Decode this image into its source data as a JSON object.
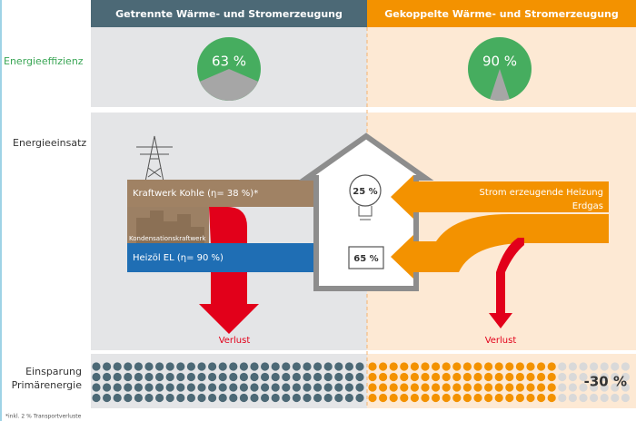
{
  "header": {
    "left": "Getrennte Wärme- und Stromerzeugung",
    "right": "Gekoppelte Wärme- und Stromerzeugung"
  },
  "rows": {
    "efficiency": "Energieeffizienz",
    "input": "Energieeinsatz",
    "savings_line1": "Einsparung",
    "savings_line2": "Primärenergie"
  },
  "efficiency": [
    {
      "value": 63,
      "label": "63 %"
    },
    {
      "value": 90,
      "label": "90 %"
    }
  ],
  "flows": {
    "coal": "Kraftwerk Kohle (η= 38 %)*",
    "coal_plant": "Kondensationskraftwerk",
    "oil": "Heizöl EL (η= 90 %)",
    "chp_line1": "Strom erzeugende Heizung",
    "chp_line2": "Erdgas",
    "loss_left": "Verlust",
    "loss_right": "Verlust"
  },
  "house": {
    "electricity": "25 %",
    "heat": "65 %"
  },
  "savings": "-30 %",
  "footnote": "*inkl. 2 % Transportverluste"
}
